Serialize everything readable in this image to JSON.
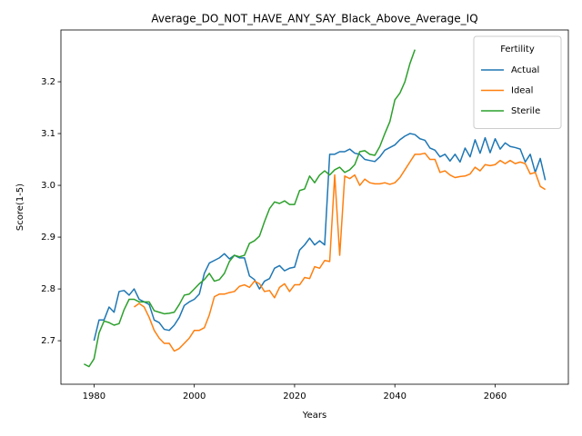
{
  "chart_data": {
    "type": "line",
    "title": "Average_DO_NOT_HAVE_ANY_SAY_Black_Above_Average_IQ",
    "xlabel": "Years",
    "ylabel": "Score(1-5)",
    "legend_title": "Fertility",
    "legend_loc": "upper right",
    "grid": false,
    "x": [
      1978,
      1979,
      1980,
      1981,
      1982,
      1983,
      1984,
      1985,
      1986,
      1987,
      1988,
      1989,
      1990,
      1991,
      1992,
      1993,
      1994,
      1995,
      1996,
      1997,
      1998,
      1999,
      2000,
      2001,
      2002,
      2003,
      2004,
      2005,
      2006,
      2007,
      2008,
      2009,
      2010,
      2011,
      2012,
      2013,
      2014,
      2015,
      2016,
      2017,
      2018,
      2019,
      2020,
      2021,
      2022,
      2023,
      2024,
      2025,
      2026,
      2027,
      2028,
      2029,
      2030,
      2031,
      2032,
      2033,
      2034,
      2035,
      2036,
      2037,
      2038,
      2039,
      2040,
      2041,
      2042,
      2043,
      2044,
      2045,
      2046,
      2047,
      2048,
      2049,
      2050,
      2051,
      2052,
      2053,
      2054,
      2055,
      2056,
      2057,
      2058,
      2059,
      2060,
      2061,
      2062,
      2063,
      2064,
      2065,
      2066,
      2067,
      2068,
      2069,
      2070
    ],
    "xlim": [
      1973.4,
      2074.6
    ],
    "xticks": [
      1980,
      2000,
      2020,
      2040,
      2060
    ],
    "ylim": [
      2.616,
      3.3
    ],
    "yticks": [
      2.7,
      2.8,
      2.9,
      {
        "value": 3,
        "label": "3.0"
      },
      3.1,
      3.2
    ],
    "series": [
      {
        "name": "Actual",
        "color": "#1f77b4",
        "values": [
          null,
          null,
          2.7,
          2.74,
          2.74,
          2.765,
          2.755,
          2.795,
          2.797,
          2.788,
          2.8,
          2.78,
          2.775,
          2.77,
          2.74,
          2.735,
          2.722,
          2.72,
          2.73,
          2.745,
          2.768,
          2.775,
          2.78,
          2.79,
          2.83,
          2.85,
          2.855,
          2.86,
          2.868,
          2.858,
          2.865,
          2.86,
          2.86,
          2.825,
          2.818,
          2.8,
          2.815,
          2.82,
          2.84,
          2.845,
          2.835,
          2.84,
          2.842,
          2.875,
          2.885,
          2.898,
          2.885,
          2.893,
          2.885,
          3.06,
          3.06,
          3.065,
          3.065,
          3.07,
          3.062,
          3.06,
          3.05,
          3.048,
          3.046,
          3.055,
          3.068,
          3.073,
          3.078,
          3.088,
          3.095,
          3.1,
          3.098,
          3.09,
          3.087,
          3.072,
          3.068,
          3.055,
          3.06,
          3.047,
          3.06,
          3.045,
          3.072,
          3.055,
          3.088,
          3.062,
          3.092,
          3.063,
          3.09,
          3.07,
          3.082,
          3.075,
          3.073,
          3.07,
          3.045,
          3.06,
          3.025,
          3.052,
          3.01
        ]
      },
      {
        "name": "Ideal",
        "color": "#ff7f0e",
        "values": [
          null,
          null,
          null,
          null,
          null,
          null,
          null,
          null,
          null,
          null,
          2.765,
          2.772,
          2.765,
          2.745,
          2.72,
          2.705,
          2.695,
          2.695,
          2.68,
          2.685,
          2.695,
          2.705,
          2.72,
          2.72,
          2.725,
          2.75,
          2.785,
          2.79,
          2.79,
          2.793,
          2.795,
          2.805,
          2.808,
          2.803,
          2.815,
          2.81,
          2.795,
          2.797,
          2.783,
          2.803,
          2.81,
          2.795,
          2.808,
          2.808,
          2.822,
          2.82,
          2.843,
          2.84,
          2.855,
          2.853,
          3.02,
          2.865,
          3.018,
          3.013,
          3.02,
          3.0,
          3.012,
          3.005,
          3.003,
          3.003,
          3.005,
          3.002,
          3.005,
          3.015,
          3.03,
          3.045,
          3.06,
          3.06,
          3.062,
          3.05,
          3.05,
          3.025,
          3.028,
          3.02,
          3.015,
          3.017,
          3.018,
          3.022,
          3.035,
          3.028,
          3.04,
          3.038,
          3.04,
          3.048,
          3.042,
          3.048,
          3.042,
          3.045,
          3.042,
          3.022,
          3.025,
          2.998,
          2.992
        ]
      },
      {
        "name": "Sterile",
        "color": "#2ca02c",
        "values": [
          2.655,
          2.65,
          2.665,
          2.715,
          2.738,
          2.735,
          2.73,
          2.733,
          2.76,
          2.78,
          2.78,
          2.775,
          2.775,
          2.775,
          2.758,
          2.755,
          2.752,
          2.753,
          2.755,
          2.77,
          2.788,
          2.79,
          2.8,
          2.81,
          2.818,
          2.83,
          2.815,
          2.818,
          2.83,
          2.853,
          2.865,
          2.862,
          2.865,
          2.888,
          2.893,
          2.902,
          2.93,
          2.955,
          2.968,
          2.965,
          2.97,
          2.963,
          2.963,
          2.99,
          2.993,
          3.018,
          3.005,
          3.02,
          3.028,
          3.02,
          3.03,
          3.035,
          3.025,
          3.03,
          3.04,
          3.065,
          3.067,
          3.06,
          3.058,
          3.075,
          3.1,
          3.123,
          3.165,
          3.178,
          3.2,
          3.235,
          3.262,
          null,
          null,
          null,
          null,
          null,
          null,
          null,
          null,
          null,
          null,
          null,
          null,
          null,
          null,
          null,
          null,
          null,
          null,
          null,
          null,
          null,
          null,
          null,
          null,
          null,
          null
        ]
      }
    ]
  }
}
